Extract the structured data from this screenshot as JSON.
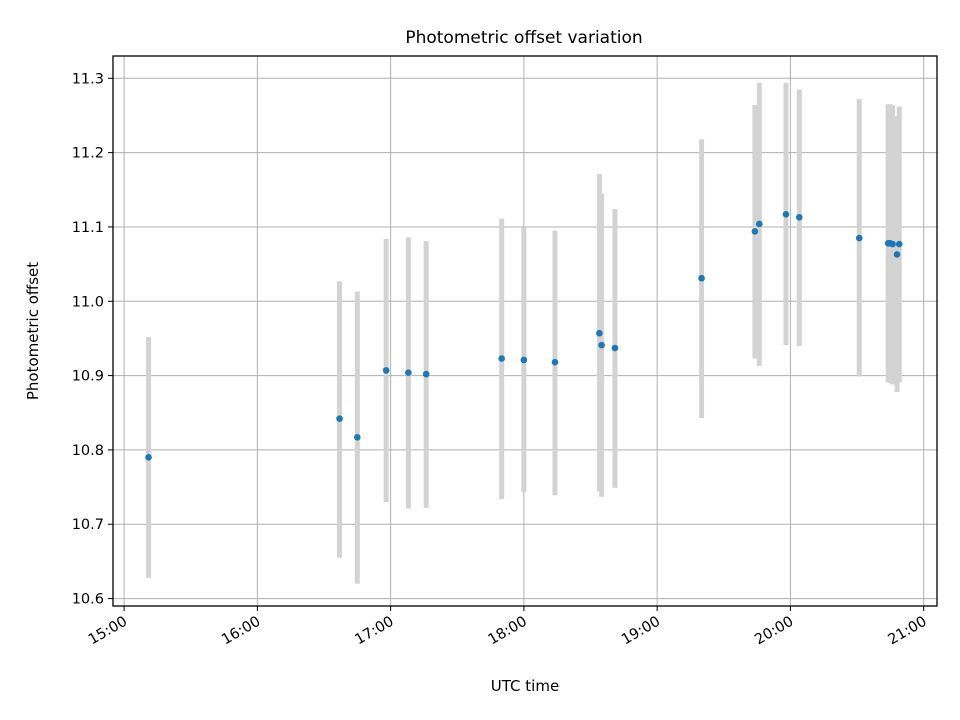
{
  "chart_data": {
    "type": "scatter",
    "title": "Photometric offset variation",
    "xlabel": "UTC time",
    "ylabel": "Photometric offset",
    "xlim": [
      "14:55",
      "21:06"
    ],
    "ylim": [
      10.59,
      11.33
    ],
    "x_ticks": [
      "15:00",
      "16:00",
      "17:00",
      "18:00",
      "19:00",
      "20:00",
      "21:00"
    ],
    "y_ticks": [
      "10.6",
      "10.7",
      "10.8",
      "10.9",
      "11.0",
      "11.1",
      "11.2",
      "11.3"
    ],
    "grid": true,
    "point_color": "#1f77b4",
    "errorbar_color": "#d3d3d3",
    "points": [
      {
        "t": "15:11",
        "y": 10.79,
        "lo": 10.628,
        "hi": 10.952
      },
      {
        "t": "16:37",
        "y": 10.842,
        "lo": 10.655,
        "hi": 11.027
      },
      {
        "t": "16:45",
        "y": 10.817,
        "lo": 10.62,
        "hi": 11.013
      },
      {
        "t": "16:58",
        "y": 10.907,
        "lo": 10.73,
        "hi": 11.084
      },
      {
        "t": "17:08",
        "y": 10.904,
        "lo": 10.721,
        "hi": 11.086
      },
      {
        "t": "17:16",
        "y": 10.902,
        "lo": 10.722,
        "hi": 11.081
      },
      {
        "t": "17:50",
        "y": 10.923,
        "lo": 10.734,
        "hi": 11.111
      },
      {
        "t": "18:00",
        "y": 10.921,
        "lo": 10.743,
        "hi": 11.099
      },
      {
        "t": "18:14",
        "y": 10.918,
        "lo": 10.739,
        "hi": 11.095
      },
      {
        "t": "18:34",
        "y": 10.957,
        "lo": 10.744,
        "hi": 11.171
      },
      {
        "t": "18:35",
        "y": 10.941,
        "lo": 10.737,
        "hi": 11.145
      },
      {
        "t": "18:41",
        "y": 10.937,
        "lo": 10.749,
        "hi": 11.124
      },
      {
        "t": "19:20",
        "y": 11.031,
        "lo": 10.843,
        "hi": 11.218
      },
      {
        "t": "19:44",
        "y": 11.094,
        "lo": 10.923,
        "hi": 11.264
      },
      {
        "t": "19:46",
        "y": 11.104,
        "lo": 10.913,
        "hi": 11.294
      },
      {
        "t": "19:58",
        "y": 11.117,
        "lo": 10.941,
        "hi": 11.294
      },
      {
        "t": "20:04",
        "y": 11.113,
        "lo": 10.94,
        "hi": 11.285
      },
      {
        "t": "20:31",
        "y": 11.085,
        "lo": 10.899,
        "hi": 11.272
      },
      {
        "t": "20:44",
        "y": 11.078,
        "lo": 10.891,
        "hi": 11.265
      },
      {
        "t": "20:45",
        "y": 11.078,
        "lo": 10.89,
        "hi": 11.265
      },
      {
        "t": "20:46",
        "y": 11.077,
        "lo": 10.888,
        "hi": 11.264
      },
      {
        "t": "20:48",
        "y": 11.063,
        "lo": 10.878,
        "hi": 11.249
      },
      {
        "t": "20:49",
        "y": 11.077,
        "lo": 10.891,
        "hi": 11.262
      }
    ]
  }
}
